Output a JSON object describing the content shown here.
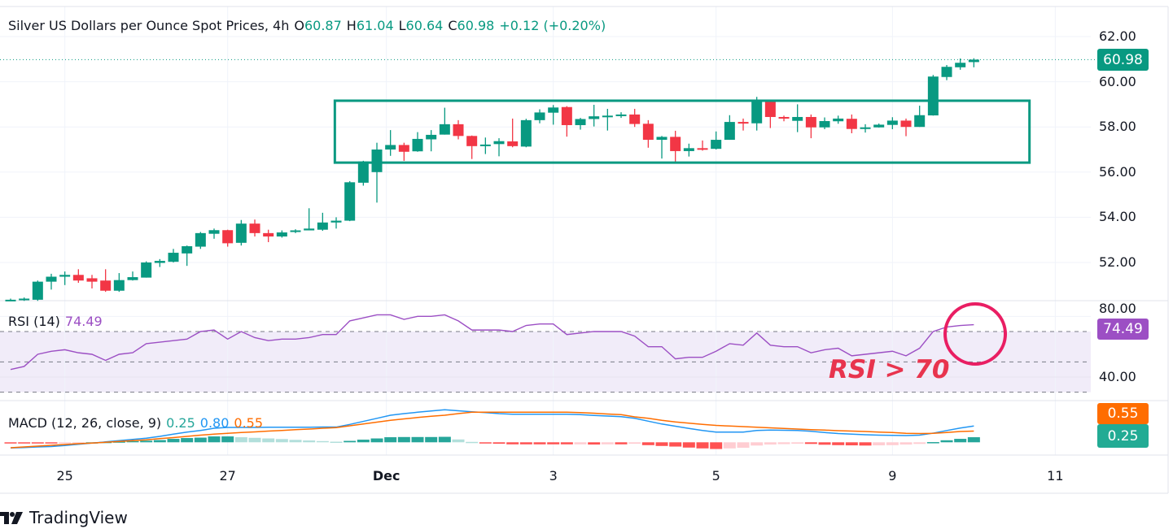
{
  "header": {
    "symbol_title": "Silver US Dollars per Ounce Spot Prices, 4h",
    "open_label": "O",
    "open": "60.87",
    "high_label": "H",
    "high": "61.04",
    "low_label": "L",
    "low": "60.64",
    "close_label": "C",
    "close": "60.98",
    "change": "+0.12 (+0.20%)"
  },
  "price_axis": {
    "labels": [
      "62.00",
      "60.00",
      "58.00",
      "56.00",
      "54.00",
      "52.00"
    ],
    "current": "60.98"
  },
  "rsi": {
    "legend": "RSI (14)",
    "value": "74.49",
    "axis_labels": [
      "80.00",
      "40.00"
    ],
    "annotation": "RSI > 70"
  },
  "macd": {
    "legend": "MACD (12, 26, close, 9)",
    "hist": "0.25",
    "macd": "0.80",
    "signal": "0.55"
  },
  "time_axis": [
    {
      "label": "25",
      "at_bar": 4
    },
    {
      "label": "27",
      "at_bar": 16
    },
    {
      "label": "Dec",
      "at_bar": 27.7
    },
    {
      "label": "3",
      "at_bar": 40
    },
    {
      "label": "5",
      "at_bar": 52
    },
    {
      "label": "9",
      "at_bar": 65
    },
    {
      "label": "11",
      "at_bar": 77
    }
  ],
  "brand": "TradingView",
  "colors": {
    "up": "#089981",
    "down": "#f23645",
    "rsi": "#9c4fc4",
    "macd": "#2196f3",
    "signal": "#ff6d00",
    "annotation": "#e91e63"
  },
  "chart_data": {
    "type": "candlestick",
    "title": "Silver US Dollars per Ounce Spot Prices, 4h",
    "ylim": [
      50.3,
      62.5
    ],
    "ohlc": [
      [
        50.3,
        50.35,
        50.4,
        50.3
      ],
      [
        50.35,
        50.4,
        50.45,
        50.3
      ],
      [
        50.35,
        51.15,
        51.2,
        50.3
      ],
      [
        51.15,
        51.37,
        51.5,
        50.8
      ],
      [
        51.37,
        51.45,
        51.6,
        51.0
      ],
      [
        51.45,
        51.2,
        51.7,
        51.1
      ],
      [
        51.3,
        51.15,
        51.45,
        50.85
      ],
      [
        51.2,
        50.75,
        51.7,
        50.7
      ],
      [
        50.75,
        51.22,
        51.53,
        50.7
      ],
      [
        51.22,
        51.35,
        51.6,
        51.2
      ],
      [
        51.33,
        52.0,
        52.05,
        51.33
      ],
      [
        51.98,
        52.07,
        52.15,
        51.8
      ],
      [
        52.03,
        52.43,
        52.6,
        52.0
      ],
      [
        52.4,
        52.72,
        52.75,
        51.85
      ],
      [
        52.7,
        53.3,
        53.35,
        52.6
      ],
      [
        53.27,
        53.43,
        53.5,
        53.05
      ],
      [
        53.43,
        52.85,
        53.45,
        52.7
      ],
      [
        52.87,
        53.72,
        53.88,
        52.75
      ],
      [
        53.72,
        53.3,
        53.9,
        53.15
      ],
      [
        53.3,
        53.15,
        53.45,
        52.9
      ],
      [
        53.15,
        53.33,
        53.42,
        53.1
      ],
      [
        53.35,
        53.42,
        53.47,
        53.3
      ],
      [
        53.42,
        53.5,
        54.4,
        53.42
      ],
      [
        53.45,
        53.77,
        54.2,
        53.4
      ],
      [
        53.77,
        53.85,
        54.0,
        53.5
      ],
      [
        53.85,
        55.55,
        55.6,
        53.83
      ],
      [
        55.53,
        56.47,
        56.5,
        55.4
      ],
      [
        56.0,
        57.0,
        57.3,
        54.65
      ],
      [
        57.0,
        57.2,
        57.86,
        56.72
      ],
      [
        57.2,
        56.9,
        57.3,
        56.5
      ],
      [
        56.92,
        57.47,
        57.77,
        56.9
      ],
      [
        57.45,
        57.65,
        57.86,
        56.92
      ],
      [
        57.66,
        58.12,
        58.85,
        57.66
      ],
      [
        58.12,
        57.6,
        58.3,
        57.45
      ],
      [
        57.6,
        57.15,
        57.62,
        56.58
      ],
      [
        57.15,
        57.22,
        57.53,
        56.8
      ],
      [
        57.24,
        57.37,
        57.5,
        56.7
      ],
      [
        57.36,
        57.15,
        58.37,
        57.1
      ],
      [
        57.13,
        58.3,
        58.36,
        57.1
      ],
      [
        58.3,
        58.64,
        58.78,
        58.16
      ],
      [
        58.63,
        58.86,
        58.97,
        58.1
      ],
      [
        58.88,
        58.08,
        58.92,
        57.57
      ],
      [
        58.08,
        58.35,
        58.4,
        57.88
      ],
      [
        58.35,
        58.47,
        58.98,
        58.02
      ],
      [
        58.47,
        58.5,
        58.8,
        57.84
      ],
      [
        58.5,
        58.55,
        58.65,
        58.4
      ],
      [
        58.55,
        58.13,
        58.8,
        58.0
      ],
      [
        58.14,
        57.43,
        58.3,
        57.08
      ],
      [
        57.43,
        57.56,
        57.6,
        56.6
      ],
      [
        57.56,
        56.93,
        57.83,
        56.46
      ],
      [
        56.93,
        57.06,
        57.26,
        56.69
      ],
      [
        57.06,
        57.03,
        57.4,
        56.95
      ],
      [
        57.03,
        57.43,
        57.8,
        57.0
      ],
      [
        57.43,
        58.22,
        58.52,
        57.43
      ],
      [
        58.22,
        58.2,
        58.37,
        57.84
      ],
      [
        58.16,
        59.12,
        59.33,
        57.84
      ],
      [
        59.12,
        58.44,
        59.2,
        57.95
      ],
      [
        58.44,
        58.42,
        58.5,
        58.25
      ],
      [
        58.27,
        58.44,
        59.0,
        57.77
      ],
      [
        58.44,
        57.98,
        58.55,
        57.5
      ],
      [
        57.98,
        58.26,
        58.42,
        57.9
      ],
      [
        58.25,
        58.37,
        58.5,
        58.14
      ],
      [
        58.36,
        57.91,
        58.55,
        57.72
      ],
      [
        57.91,
        57.98,
        58.12,
        57.75
      ],
      [
        57.98,
        58.1,
        58.15,
        57.97
      ],
      [
        58.09,
        58.28,
        58.43,
        57.9
      ],
      [
        58.28,
        58.0,
        58.37,
        57.59
      ],
      [
        58.0,
        58.52,
        58.94,
        58.0
      ],
      [
        58.51,
        60.23,
        60.3,
        58.5
      ],
      [
        60.21,
        60.66,
        60.74,
        60.07
      ],
      [
        60.64,
        60.84,
        61.03,
        60.53
      ],
      [
        60.87,
        60.98,
        61.04,
        60.64
      ]
    ],
    "range_box": {
      "bars": [
        23.9,
        75.1
      ],
      "prices": [
        56.42,
        59.16
      ]
    },
    "rsi_values": [
      45,
      47,
      55,
      57,
      58,
      56,
      55,
      51,
      55,
      56,
      62,
      63,
      64,
      65,
      70,
      71,
      65,
      70,
      66,
      64,
      65,
      65,
      66,
      68,
      68,
      77,
      79,
      81,
      81,
      78,
      80,
      80,
      81,
      77,
      71,
      71,
      71,
      70,
      74,
      75,
      75,
      68,
      69,
      70,
      70,
      70,
      67,
      60,
      60,
      52,
      53,
      53,
      57,
      62,
      61,
      69,
      61,
      60,
      60,
      56,
      58,
      59,
      54,
      55,
      56,
      57,
      54,
      59,
      70,
      73,
      74,
      74.49
    ],
    "rsi_levels": [
      70,
      50,
      30
    ],
    "rsi_ylim": [
      27,
      87
    ],
    "rsi_circle": {
      "bar": 71.1,
      "rsi": 68.4
    },
    "macd_values": [
      -0.28,
      -0.26,
      -0.23,
      -0.21,
      -0.16,
      -0.1,
      -0.04,
      0.02,
      0.08,
      0.14,
      0.2,
      0.29,
      0.4,
      0.5,
      0.58,
      0.69,
      0.73,
      0.73,
      0.73,
      0.74,
      0.74,
      0.74,
      0.74,
      0.75,
      0.75,
      0.88,
      1.03,
      1.18,
      1.33,
      1.41,
      1.48,
      1.54,
      1.6,
      1.55,
      1.5,
      1.46,
      1.41,
      1.38,
      1.38,
      1.38,
      1.38,
      1.38,
      1.36,
      1.32,
      1.29,
      1.26,
      1.18,
      1.04,
      0.9,
      0.79,
      0.68,
      0.58,
      0.5,
      0.5,
      0.5,
      0.58,
      0.6,
      0.59,
      0.58,
      0.54,
      0.48,
      0.43,
      0.4,
      0.37,
      0.35,
      0.34,
      0.33,
      0.35,
      0.45,
      0.58,
      0.7,
      0.8
    ],
    "signal_values": [
      -0.27,
      -0.23,
      -0.19,
      -0.15,
      -0.11,
      -0.07,
      -0.04,
      0.0,
      0.04,
      0.08,
      0.12,
      0.18,
      0.23,
      0.29,
      0.35,
      0.4,
      0.44,
      0.48,
      0.51,
      0.55,
      0.58,
      0.62,
      0.65,
      0.69,
      0.72,
      0.81,
      0.9,
      0.99,
      1.08,
      1.15,
      1.22,
      1.28,
      1.33,
      1.41,
      1.48,
      1.48,
      1.48,
      1.48,
      1.48,
      1.48,
      1.48,
      1.48,
      1.46,
      1.43,
      1.39,
      1.36,
      1.25,
      1.18,
      1.08,
      1.0,
      0.94,
      0.88,
      0.83,
      0.8,
      0.77,
      0.74,
      0.71,
      0.68,
      0.65,
      0.62,
      0.6,
      0.57,
      0.55,
      0.53,
      0.5,
      0.48,
      0.44,
      0.43,
      0.44,
      0.48,
      0.53,
      0.55
    ]
  }
}
